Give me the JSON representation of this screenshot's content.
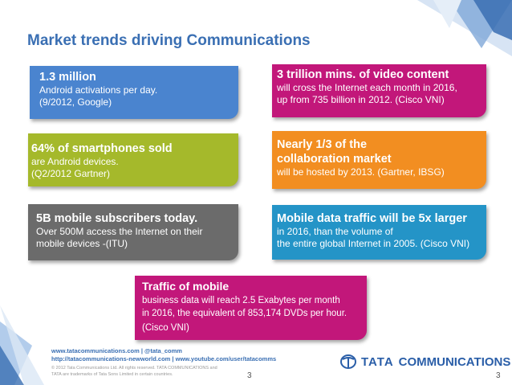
{
  "title": "Market trends driving Communications",
  "boxes": [
    {
      "head": "1.3 million",
      "lines": [
        "Android activations per day.",
        "(9/2012, Google)"
      ],
      "color": "#4a84cf"
    },
    {
      "head": "3 trillion mins. of video content",
      "lines": [
        "will cross the Internet each month in 2016,",
        "up from 735 billion in 2012. (Cisco VNI)"
      ],
      "color": "#c2177a"
    },
    {
      "head": "64% of smartphones sold",
      "lines": [
        "are Android devices.",
        "(Q2/2012 Gartner)"
      ],
      "color": "#a5b92b"
    },
    {
      "head_lines": [
        "Nearly 1/3 of the",
        "collaboration market"
      ],
      "lines": [
        "will be hosted by 2013. (Gartner, IBSG)"
      ],
      "color": "#f28e21"
    },
    {
      "head": "5B mobile subscribers today.",
      "lines": [
        "Over 500M access the Internet on their",
        "mobile devices -(ITU)"
      ],
      "color": "#6b6b6b"
    },
    {
      "head": "Mobile data traffic will be 5x larger",
      "lines": [
        "in 2016, than the volume of",
        "the entire global Internet in 2005. (Cisco VNI)"
      ],
      "color": "#2494c7"
    },
    {
      "head": "Traffic of mobile",
      "lines": [
        "business data will reach 2.5 Exabytes per month",
        "in 2016, the equivalent of 853,174 DVDs per hour."
      ],
      "source": "(Cisco VNI)",
      "color": "#c2177a"
    }
  ],
  "footer": {
    "links_line1": "www.tatacommunications.com | @tata_comm",
    "links_line2": "http://tatacommunications-newworld.com | www.youtube.com/user/tatacomms",
    "copyright_line1": "© 2012 Tata Communications Ltd. All rights reserved. TATA COMMUNICATIONS and",
    "copyright_line2": "TATA are trademarks of Tata Sons Limited in certain countries.",
    "page_number_center": "3",
    "page_number_right": "3",
    "logo_word1": "TATA",
    "logo_word2": "COMMUNICATIONS"
  }
}
